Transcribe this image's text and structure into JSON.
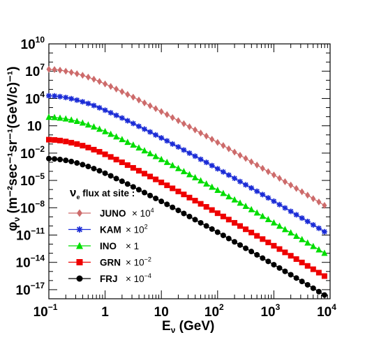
{
  "chart_data": {
    "type": "line",
    "xscale": "log",
    "yscale": "log",
    "xlim": [
      0.1,
      10000
    ],
    "ylim": [
      1e-18,
      10000000000.0
    ],
    "xlabel": "E",
    "xlabel_sub": "ν",
    "xlabel_unit": "(GeV)",
    "ylabel_main": "φ",
    "ylabel_sub": "ν",
    "ylabel_unit": "(m",
    "ylabel_unit_text": "(m⁻²sec⁻¹sr⁻¹(GeV/c)⁻¹)",
    "xticks": [
      {
        "value": 0.1,
        "base": "10",
        "exp": "−1"
      },
      {
        "value": 1,
        "base": "1",
        "exp": ""
      },
      {
        "value": 10,
        "base": "10",
        "exp": ""
      },
      {
        "value": 100,
        "base": "10",
        "exp": "2"
      },
      {
        "value": 1000,
        "base": "10",
        "exp": "3"
      },
      {
        "value": 10000,
        "base": "10",
        "exp": "4"
      }
    ],
    "yticks": [
      {
        "value": 10000000000.0,
        "base": "10",
        "exp": "10"
      },
      {
        "value": 10000000.0,
        "base": "10",
        "exp": "7"
      },
      {
        "value": 10000.0,
        "base": "10",
        "exp": "4"
      },
      {
        "value": 10,
        "base": "10",
        "exp": ""
      },
      {
        "value": 0.01,
        "base": "10",
        "exp": "−2"
      },
      {
        "value": 1e-05,
        "base": "10",
        "exp": "−5"
      },
      {
        "value": 1e-08,
        "base": "10",
        "exp": "−8"
      },
      {
        "value": 1e-11,
        "base": "10",
        "exp": "−11"
      },
      {
        "value": 1e-14,
        "base": "10",
        "exp": "−14"
      },
      {
        "value": 1e-17,
        "base": "10",
        "exp": "−17"
      }
    ],
    "legend": {
      "title": "ν",
      "title_sub": "e",
      "title_rest": " flux at site :",
      "placement": "bottom-left"
    },
    "x": [
      0.1,
      0.126,
      0.158,
      0.2,
      0.251,
      0.316,
      0.398,
      0.501,
      0.631,
      0.794,
      1,
      1.26,
      1.58,
      2,
      2.51,
      3.16,
      3.98,
      5.01,
      6.31,
      7.94,
      10,
      12.6,
      15.8,
      20,
      25.1,
      31.6,
      39.8,
      50.1,
      63.1,
      79.4,
      100,
      126,
      158,
      200,
      251,
      316,
      398,
      501,
      631,
      794,
      1000,
      1260,
      1580,
      2000,
      2510,
      3160,
      3980,
      5010,
      6310,
      7940
    ],
    "series": [
      {
        "name": "JUNO",
        "scale_base": "× 10",
        "scale_exp": "4",
        "color": "#cd6b6b",
        "marker": "diamond",
        "values": [
          16000000.0,
          15000000.0,
          13000000.0,
          10000000.0,
          7500000.0,
          5300000.0,
          3500000.0,
          2200000.0,
          1300000.0,
          740000.0,
          400000.0,
          210000.0,
          110000.0,
          56000.0,
          28000.0,
          14000.0,
          6800.0,
          3300.0,
          1600.0,
          760.0,
          360.0,
          170.0,
          80,
          37,
          17,
          7.8,
          3.6,
          1.6,
          0.74,
          0.33,
          0.15,
          0.067,
          0.03,
          0.013,
          0.0058,
          0.0026,
          0.0011,
          0.00049,
          0.00021,
          9.2e-05,
          4e-05,
          1.7e-05,
          7.3e-06,
          3.1e-06,
          1.3e-06,
          5.6e-07,
          2.4e-07,
          1e-07,
          4.3e-08,
          1.8e-08
        ]
      },
      {
        "name": "KAM",
        "scale_base": "× 10",
        "scale_exp": "2",
        "color": "#1a2bd6",
        "marker": "star",
        "values": [
          20000.0,
          19000.0,
          16000.0,
          13000.0,
          9500.0,
          6600.0,
          4400.0,
          2800.0,
          1700.0,
          960.0,
          520.0,
          270.0,
          140.0,
          72,
          36,
          18,
          8.8,
          4.3,
          2.1,
          0.99,
          0.47,
          0.22,
          0.1,
          0.048,
          0.022,
          0.01,
          0.0046,
          0.0021,
          0.00096,
          0.00043,
          0.00019,
          8.7e-05,
          3.9e-05,
          1.7e-05,
          7.5e-06,
          3.3e-06,
          1.5e-06,
          6.4e-07,
          2.8e-07,
          1.2e-07,
          5.2e-08,
          2.2e-08,
          9.5e-09,
          4e-09,
          1.7e-09,
          7.3e-10,
          3.1e-10,
          1.3e-10,
          5.6e-11,
          2.3e-11
        ]
      },
      {
        "name": "INO",
        "scale_base": "× 1",
        "scale_exp": "",
        "color": "#00dd00",
        "marker": "triangle",
        "values": [
          90,
          84,
          73,
          60,
          45,
          32,
          21,
          13,
          7.8,
          4.4,
          2.4,
          1.25,
          0.64,
          0.32,
          0.16,
          0.08,
          0.039,
          0.019,
          0.0092,
          0.0044,
          0.0021,
          0.001,
          0.00046,
          0.00021,
          9.8e-05,
          4.5e-05,
          2.1e-05,
          9.4e-06,
          4.3e-06,
          1.9e-06,
          8.6e-07,
          3.9e-07,
          1.7e-07,
          7.6e-08,
          3.4e-08,
          1.5e-08,
          6.5e-09,
          2.8e-09,
          1.2e-09,
          5.3e-10,
          2.3e-10,
          9.8e-11,
          4.2e-11,
          1.8e-11,
          7.7e-12,
          3.3e-12,
          1.4e-12,
          5.9e-13,
          2.5e-13,
          1.05e-13
        ]
      },
      {
        "name": "GRN",
        "scale_base": "× 10",
        "scale_exp": "−2",
        "color": "#ee0000",
        "marker": "square",
        "values": [
          0.3,
          0.28,
          0.24,
          0.19,
          0.14,
          0.1,
          0.066,
          0.041,
          0.024,
          0.014,
          0.0074,
          0.0038,
          0.00195,
          0.00098,
          0.00048,
          0.00024,
          0.000116,
          5.6e-05,
          2.7e-05,
          1.3e-05,
          6.1e-06,
          2.9e-06,
          1.35e-06,
          6.2e-07,
          2.9e-07,
          1.3e-07,
          6e-08,
          2.7e-08,
          1.25e-08,
          5.6e-09,
          2.5e-09,
          1.1e-09,
          5e-10,
          2.2e-10,
          9.8e-11,
          4.3e-11,
          1.9e-11,
          8.2e-12,
          3.6e-12,
          1.55e-12,
          6.7e-13,
          2.9e-13,
          1.25e-13,
          5.3e-14,
          2.3e-14,
          9.7e-15,
          4.1e-15,
          1.75e-15,
          7.4e-16,
          3.1e-16
        ]
      },
      {
        "name": "FRJ",
        "scale_base": "× 10",
        "scale_exp": "−4",
        "color": "#000000",
        "marker": "circle",
        "values": [
          0.0025,
          0.0023,
          0.002,
          0.0016,
          0.0012,
          0.00082,
          0.00054,
          0.00034,
          0.0002,
          0.000115,
          6.2e-05,
          3.2e-05,
          1.6e-05,
          8.1e-06,
          4e-06,
          1.95e-06,
          9.5e-07,
          4.6e-07,
          2.2e-07,
          1.05e-07,
          5e-08,
          2.35e-08,
          1.1e-08,
          5.1e-09,
          2.35e-09,
          1.08e-09,
          4.9e-10,
          2.2e-10,
          1e-10,
          4.55e-11,
          2.05e-11,
          9.2e-12,
          4.1e-12,
          1.8e-12,
          8e-13,
          3.5e-13,
          1.55e-13,
          6.7e-14,
          2.9e-14,
          1.27e-14,
          5.5e-15,
          2.4e-15,
          1.03e-15,
          4.4e-16,
          1.9e-16,
          8e-17,
          3.4e-17,
          1.45e-17,
          6.1e-18,
          2.6e-18
        ]
      }
    ]
  }
}
